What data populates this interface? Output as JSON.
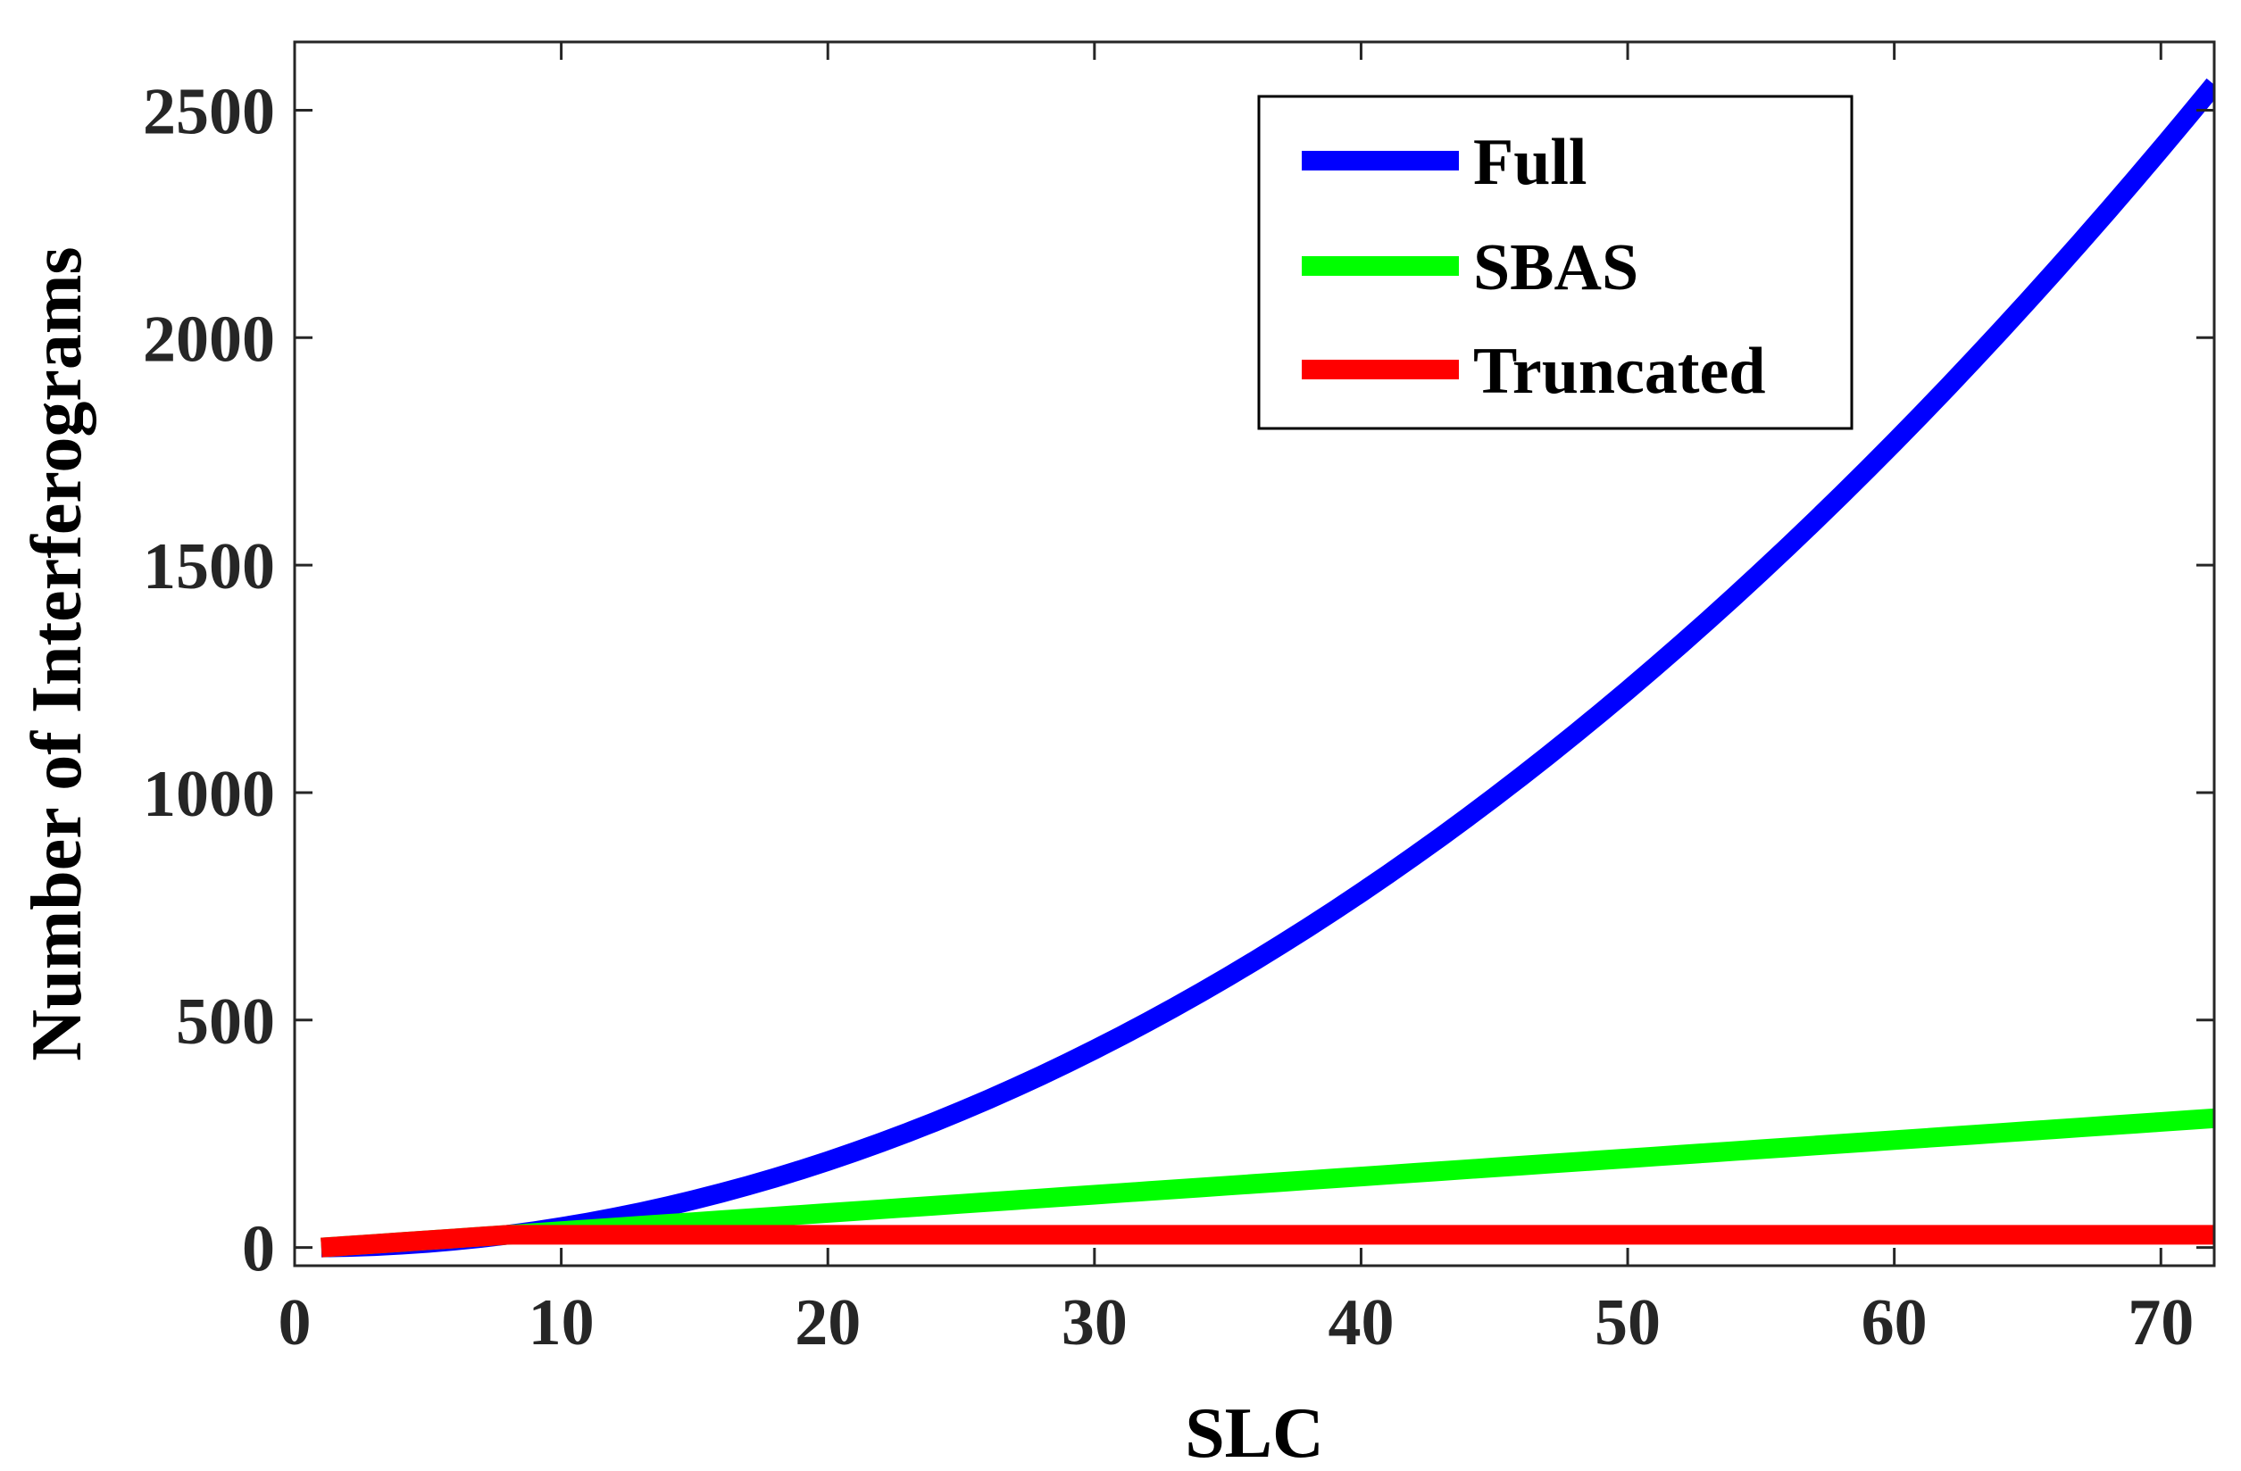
{
  "chart_data": {
    "type": "line",
    "title": "",
    "xlabel": "SLC",
    "ylabel": "Number of Interferograms",
    "xlim": [
      0,
      72
    ],
    "ylim": [
      -40,
      2650
    ],
    "xticks": [
      0,
      10,
      20,
      30,
      40,
      50,
      60,
      70
    ],
    "yticks": [
      0,
      500,
      1000,
      1500,
      2000,
      2500
    ],
    "x": [
      1,
      2,
      3,
      4,
      5,
      6,
      7,
      8,
      9,
      10,
      11,
      12,
      13,
      14,
      15,
      16,
      17,
      18,
      19,
      20,
      21,
      22,
      23,
      24,
      25,
      26,
      27,
      28,
      29,
      30,
      31,
      32,
      33,
      34,
      35,
      36,
      37,
      38,
      39,
      40,
      41,
      42,
      43,
      44,
      45,
      46,
      47,
      48,
      49,
      50,
      51,
      52,
      53,
      54,
      55,
      56,
      57,
      58,
      59,
      60,
      61,
      62,
      63,
      64,
      65,
      66,
      67,
      68,
      69,
      70,
      71,
      72
    ],
    "series": [
      {
        "name": "Full",
        "color": "#0000ff",
        "values": [
          0,
          1,
          3,
          6,
          10,
          15,
          21,
          28,
          36,
          45,
          55,
          66,
          78,
          91,
          105,
          120,
          136,
          153,
          171,
          190,
          210,
          231,
          253,
          276,
          300,
          325,
          351,
          378,
          406,
          435,
          465,
          496,
          528,
          561,
          595,
          630,
          666,
          703,
          741,
          780,
          820,
          861,
          903,
          946,
          990,
          1035,
          1081,
          1128,
          1176,
          1225,
          1275,
          1326,
          1378,
          1431,
          1485,
          1540,
          1596,
          1653,
          1711,
          1770,
          1830,
          1891,
          1953,
          2016,
          2080,
          2145,
          2211,
          2278,
          2346,
          2415,
          2485,
          2556
        ]
      },
      {
        "name": "SBAS",
        "color": "#00ff00",
        "values": [
          0,
          4,
          8,
          12,
          16,
          20,
          24,
          28,
          32,
          36,
          40,
          44,
          48,
          52,
          56,
          60,
          64,
          68,
          72,
          76,
          80,
          84,
          88,
          92,
          96,
          100,
          104,
          108,
          112,
          116,
          120,
          124,
          128,
          132,
          136,
          140,
          144,
          148,
          152,
          156,
          160,
          164,
          168,
          172,
          176,
          180,
          184,
          188,
          192,
          196,
          200,
          204,
          208,
          212,
          216,
          220,
          224,
          228,
          232,
          236,
          240,
          244,
          248,
          252,
          256,
          260,
          264,
          268,
          272,
          276,
          280,
          284
        ]
      },
      {
        "name": "Truncated",
        "color": "#ff0000",
        "values": [
          0,
          4,
          8,
          12,
          16,
          20,
          24,
          28,
          28,
          28,
          28,
          28,
          28,
          28,
          28,
          28,
          28,
          28,
          28,
          28,
          28,
          28,
          28,
          28,
          28,
          28,
          28,
          28,
          28,
          28,
          28,
          28,
          28,
          28,
          28,
          28,
          28,
          28,
          28,
          28,
          28,
          28,
          28,
          28,
          28,
          28,
          28,
          28,
          28,
          28,
          28,
          28,
          28,
          28,
          28,
          28,
          28,
          28,
          28,
          28,
          28,
          28,
          28,
          28,
          28,
          28,
          28,
          28,
          28,
          28,
          28,
          28
        ]
      }
    ],
    "legend_position": "top-right",
    "grid": false
  }
}
